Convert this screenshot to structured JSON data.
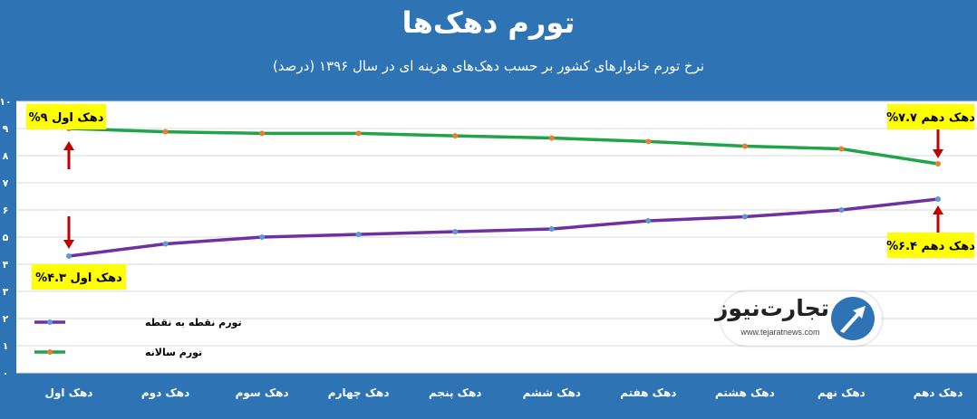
{
  "header": {
    "title": "تورم دهک‌ها",
    "subtitle": "نرخ تورم خانوارهای کشور بر حسب دهک‌های هزینه ای در سال ۱۳۹۶ (درصد)"
  },
  "logo": {
    "name": "تجارت‌نیوز",
    "url": "www.tejaratnews.com",
    "icon": "tejaratnews-logo-icon"
  },
  "colors": {
    "background": "#2e74b5",
    "annual_line": "#21a34a",
    "p2p_line": "#7030a0",
    "annual_marker": "#ed7d31",
    "p2p_marker": "#5b9bd5",
    "annotation_bg": "#ffff00",
    "arrow": "#c00000"
  },
  "chart_data": {
    "type": "line",
    "categories": [
      "دهک اول",
      "دهک دوم",
      "دهک سوم",
      "دهک چهارم",
      "دهک پنجم",
      "دهک ششم",
      "دهک هفتم",
      "دهک هشتم",
      "دهک نهم",
      "دهک دهم"
    ],
    "series": [
      {
        "name": "تورم سالانه",
        "values": [
          9.0,
          8.88,
          8.82,
          8.82,
          8.73,
          8.65,
          8.52,
          8.35,
          8.25,
          7.7
        ]
      },
      {
        "name": "تورم نقطه به نقطه",
        "values": [
          4.3,
          4.75,
          5.0,
          5.1,
          5.2,
          5.3,
          5.6,
          5.75,
          6.0,
          6.4
        ]
      }
    ],
    "yticks": [
      "۰",
      "۱",
      "۲",
      "۳",
      "۴",
      "۵",
      "۶",
      "۷",
      "۸",
      "۹",
      "۱۰"
    ],
    "ylim": [
      0,
      10
    ],
    "grid": true,
    "legend_position": "bottom-left",
    "annotations": [
      {
        "text": "دهک اول ۹%",
        "series": 0,
        "index": 0
      },
      {
        "text": "دهک اول ۴.۳%",
        "series": 1,
        "index": 0
      },
      {
        "text": "دهک دهم ۷.۷%",
        "series": 0,
        "index": 9
      },
      {
        "text": "دهک دهم ۶.۴%",
        "series": 1,
        "index": 9
      }
    ]
  }
}
